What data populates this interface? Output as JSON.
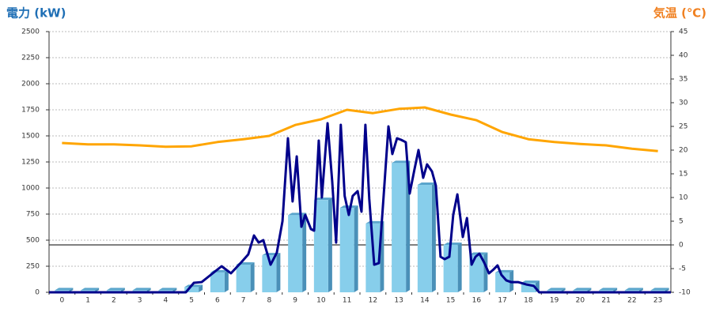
{
  "chart_data": {
    "type": "combo",
    "y_title": "電力 (kW)",
    "y2_title": "気温 (℃)",
    "categories": [
      "0",
      "1",
      "2",
      "3",
      "4",
      "5",
      "6",
      "7",
      "8",
      "9",
      "10",
      "11",
      "12",
      "13",
      "14",
      "15",
      "16",
      "17",
      "18",
      "19",
      "20",
      "21",
      "22",
      "23"
    ],
    "xlim": [
      -0.5,
      23.5
    ],
    "ylim": [
      0,
      2500
    ],
    "yticks": [
      0,
      250,
      500,
      750,
      1000,
      1250,
      1500,
      1750,
      2000,
      2250,
      2500
    ],
    "y2lim": [
      -10,
      45
    ],
    "y2ticks": [
      -10,
      -5,
      0,
      5,
      10,
      15,
      20,
      25,
      30,
      35,
      40,
      45
    ],
    "grid": true,
    "series": [
      {
        "type": "bar",
        "color": "#87ceeb",
        "values": [
          20,
          20,
          20,
          20,
          20,
          50,
          190,
          265,
          355,
          740,
          885,
          810,
          660,
          1240,
          1030,
          455,
          360,
          190,
          90,
          20,
          20,
          20,
          20,
          20
        ]
      },
      {
        "type": "line",
        "color": "#00008b",
        "x": [
          -0.5,
          4.78,
          5.09,
          5.39,
          5.7,
          6.16,
          6.52,
          6.92,
          7.19,
          7.41,
          7.59,
          7.77,
          8.05,
          8.29,
          8.51,
          8.72,
          8.9,
          9.06,
          9.24,
          9.39,
          9.61,
          9.73,
          9.91,
          10.03,
          10.25,
          10.43,
          10.58,
          10.76,
          10.91,
          11.07,
          11.22,
          11.41,
          11.56,
          11.71,
          11.86,
          12.05,
          12.23,
          12.41,
          12.6,
          12.75,
          12.93,
          13.09,
          13.27,
          13.42,
          13.6,
          13.76,
          13.94,
          14.09,
          14.28,
          14.43,
          14.61,
          14.77,
          14.95,
          15.1,
          15.26,
          15.47,
          15.63,
          15.81,
          15.96,
          16.11,
          16.29,
          16.48,
          16.66,
          16.81,
          16.96,
          17.15,
          17.33,
          17.6,
          17.91,
          18.21,
          18.42,
          23.5
        ],
        "values": [
          0,
          0,
          91,
          98,
          159,
          250,
          182,
          288,
          364,
          545,
          477,
          500,
          265,
          379,
          682,
          1477,
          871,
          1303,
          629,
          742,
          606,
          591,
          1455,
          909,
          1621,
          1061,
          477,
          1606,
          924,
          742,
          924,
          970,
          773,
          1606,
          894,
          265,
          280,
          909,
          1591,
          1326,
          1477,
          1462,
          1439,
          947,
          1174,
          1364,
          1098,
          1227,
          1159,
          1023,
          341,
          318,
          341,
          742,
          939,
          530,
          712,
          265,
          341,
          371,
          288,
          182,
          220,
          258,
          167,
          114,
          98,
          98,
          76,
          61,
          0,
          0
        ]
      },
      {
        "type": "line",
        "axis": "y2",
        "color": "#ffa500",
        "values": [
          21.5,
          21.2,
          21.2,
          21.0,
          20.7,
          20.8,
          21.7,
          22.3,
          23.0,
          25.3,
          26.5,
          28.5,
          27.8,
          28.7,
          29.0,
          27.5,
          26.3,
          23.8,
          22.3,
          21.7,
          21.3,
          21.0,
          20.3,
          19.8
        ]
      }
    ]
  }
}
